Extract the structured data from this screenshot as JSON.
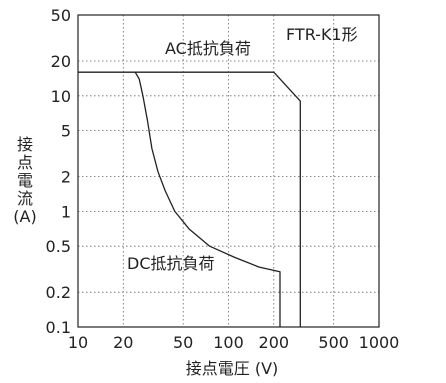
{
  "chart_data": {
    "type": "line",
    "title": "",
    "model_label": "FTR-K1形",
    "xlabel": "接点電圧 (V)",
    "ylabel_chars": [
      "接",
      "点",
      "電",
      "流"
    ],
    "ylabel_unit": "(A)",
    "x_scale": "log",
    "y_scale": "log",
    "xlim": [
      10,
      1000
    ],
    "ylim": [
      0.1,
      50
    ],
    "grid": true,
    "x_ticks": [
      {
        "value": 10,
        "label": "10"
      },
      {
        "value": 20,
        "label": "20"
      },
      {
        "value": 50,
        "label": "50"
      },
      {
        "value": 100,
        "label": "100"
      },
      {
        "value": 200,
        "label": "200"
      },
      {
        "value": 500,
        "label": "500"
      },
      {
        "value": 1000,
        "label": "1000"
      }
    ],
    "y_ticks": [
      {
        "value": 0.1,
        "label": "0.1"
      },
      {
        "value": 0.2,
        "label": "0.2"
      },
      {
        "value": 0.5,
        "label": "0.5"
      },
      {
        "value": 1,
        "label": "1"
      },
      {
        "value": 2,
        "label": "2"
      },
      {
        "value": 5,
        "label": "5"
      },
      {
        "value": 10,
        "label": "10"
      },
      {
        "value": 20,
        "label": "20"
      },
      {
        "value": 50,
        "label": "50"
      }
    ],
    "series": [
      {
        "name": "AC抵抗負荷",
        "color": "#222222",
        "points": [
          [
            10,
            16
          ],
          [
            200,
            16
          ],
          [
            300,
            9
          ],
          [
            300,
            0.1
          ]
        ]
      },
      {
        "name": "DC抵抗負荷",
        "color": "#222222",
        "points": [
          [
            24,
            16
          ],
          [
            25.5,
            14
          ],
          [
            27,
            10
          ],
          [
            29,
            6
          ],
          [
            31,
            3.5
          ],
          [
            34,
            2.2
          ],
          [
            38,
            1.5
          ],
          [
            44,
            1.0
          ],
          [
            55,
            0.7
          ],
          [
            75,
            0.5
          ],
          [
            110,
            0.4
          ],
          [
            160,
            0.33
          ],
          [
            220,
            0.3
          ],
          [
            220,
            0.1
          ]
        ]
      }
    ]
  }
}
